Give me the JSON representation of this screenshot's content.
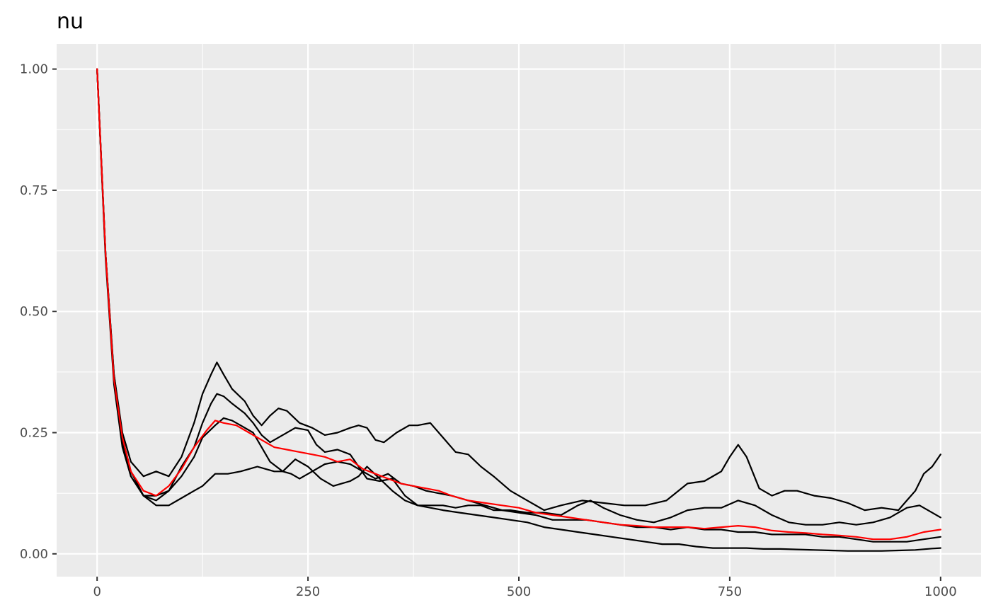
{
  "title": "nu",
  "chart_data": {
    "type": "line",
    "title": "nu",
    "xlabel": "",
    "ylabel": "",
    "xlim": [
      -48,
      1048
    ],
    "ylim": [
      -0.047,
      1.052
    ],
    "x_ticks": [
      0,
      250,
      500,
      750,
      1000
    ],
    "x_tick_labels": [
      "0",
      "250",
      "500",
      "750",
      "1000"
    ],
    "y_ticks": [
      0,
      0.25,
      0.5,
      0.75,
      1
    ],
    "y_tick_labels": [
      "0.00",
      "0.25",
      "0.50",
      "0.75",
      "1.00"
    ],
    "grid": true,
    "legend": "none",
    "colors": {
      "panel": "#ebebeb",
      "grid": "#ffffff",
      "chains": "#000000",
      "mean": "#ff0000"
    },
    "series": [
      {
        "color": "#000000",
        "x": [
          0,
          10,
          20,
          30,
          40,
          55,
          70,
          85,
          100,
          115,
          125,
          135,
          142,
          150,
          160,
          175,
          185,
          195,
          205,
          215,
          225,
          240,
          255,
          270,
          285,
          300,
          310,
          320,
          330,
          340,
          355,
          370,
          380,
          395,
          410,
          425,
          440,
          455,
          470,
          490,
          510,
          530,
          550,
          575,
          600,
          625,
          650,
          675,
          700,
          720,
          740,
          750,
          760,
          770,
          785,
          800,
          815,
          830,
          850,
          870,
          890,
          910,
          930,
          950,
          960,
          970,
          980,
          990,
          1000
        ],
        "y": [
          1.0,
          0.62,
          0.37,
          0.25,
          0.19,
          0.16,
          0.17,
          0.16,
          0.2,
          0.27,
          0.33,
          0.37,
          0.395,
          0.37,
          0.34,
          0.315,
          0.285,
          0.265,
          0.285,
          0.3,
          0.295,
          0.27,
          0.26,
          0.245,
          0.25,
          0.26,
          0.265,
          0.26,
          0.235,
          0.23,
          0.25,
          0.265,
          0.265,
          0.27,
          0.24,
          0.21,
          0.205,
          0.18,
          0.16,
          0.13,
          0.11,
          0.09,
          0.1,
          0.11,
          0.105,
          0.1,
          0.1,
          0.11,
          0.145,
          0.15,
          0.17,
          0.2,
          0.225,
          0.2,
          0.135,
          0.12,
          0.13,
          0.13,
          0.12,
          0.115,
          0.105,
          0.09,
          0.095,
          0.09,
          0.11,
          0.13,
          0.165,
          0.18,
          0.205
        ]
      },
      {
        "color": "#000000",
        "x": [
          0,
          10,
          20,
          30,
          40,
          55,
          70,
          85,
          100,
          115,
          125,
          135,
          142,
          150,
          160,
          175,
          185,
          195,
          205,
          220,
          235,
          250,
          260,
          270,
          285,
          300,
          310,
          320,
          335,
          350,
          365,
          380,
          395,
          410,
          425,
          440,
          455,
          470,
          490,
          510,
          530,
          550,
          570,
          585,
          600,
          620,
          640,
          660,
          680,
          700,
          720,
          740,
          760,
          780,
          800,
          820,
          840,
          860,
          880,
          900,
          920,
          940,
          960,
          975,
          990,
          1000
        ],
        "y": [
          1.0,
          0.62,
          0.37,
          0.24,
          0.17,
          0.12,
          0.11,
          0.13,
          0.18,
          0.22,
          0.27,
          0.31,
          0.33,
          0.325,
          0.31,
          0.29,
          0.27,
          0.245,
          0.23,
          0.245,
          0.26,
          0.255,
          0.225,
          0.21,
          0.215,
          0.205,
          0.18,
          0.155,
          0.15,
          0.155,
          0.12,
          0.1,
          0.1,
          0.1,
          0.095,
          0.1,
          0.1,
          0.09,
          0.09,
          0.085,
          0.085,
          0.08,
          0.1,
          0.11,
          0.095,
          0.08,
          0.07,
          0.065,
          0.075,
          0.09,
          0.095,
          0.095,
          0.11,
          0.1,
          0.08,
          0.065,
          0.06,
          0.06,
          0.065,
          0.06,
          0.065,
          0.075,
          0.095,
          0.1,
          0.085,
          0.075
        ]
      },
      {
        "color": "#000000",
        "x": [
          0,
          10,
          20,
          30,
          40,
          55,
          70,
          85,
          100,
          115,
          125,
          140,
          155,
          170,
          180,
          190,
          200,
          210,
          220,
          230,
          240,
          255,
          270,
          285,
          300,
          315,
          330,
          345,
          360,
          375,
          390,
          405,
          420,
          440,
          460,
          480,
          500,
          520,
          540,
          560,
          580,
          600,
          620,
          640,
          660,
          680,
          700,
          720,
          740,
          760,
          780,
          800,
          820,
          840,
          860,
          880,
          900,
          920,
          940,
          960,
          980,
          1000
        ],
        "y": [
          1.0,
          0.61,
          0.35,
          0.22,
          0.16,
          0.12,
          0.1,
          0.1,
          0.115,
          0.13,
          0.14,
          0.165,
          0.165,
          0.17,
          0.175,
          0.18,
          0.175,
          0.17,
          0.17,
          0.165,
          0.155,
          0.17,
          0.185,
          0.19,
          0.185,
          0.17,
          0.155,
          0.165,
          0.145,
          0.14,
          0.13,
          0.125,
          0.12,
          0.11,
          0.1,
          0.09,
          0.085,
          0.08,
          0.07,
          0.07,
          0.07,
          0.065,
          0.06,
          0.055,
          0.055,
          0.05,
          0.055,
          0.05,
          0.05,
          0.045,
          0.045,
          0.04,
          0.04,
          0.04,
          0.035,
          0.035,
          0.03,
          0.025,
          0.025,
          0.025,
          0.03,
          0.035
        ]
      },
      {
        "color": "#000000",
        "x": [
          0,
          10,
          20,
          30,
          40,
          55,
          70,
          85,
          100,
          115,
          125,
          140,
          150,
          160,
          170,
          185,
          195,
          205,
          220,
          235,
          250,
          265,
          280,
          290,
          300,
          310,
          320,
          335,
          350,
          365,
          380,
          395,
          410,
          430,
          450,
          470,
          490,
          510,
          530,
          550,
          570,
          590,
          610,
          630,
          650,
          670,
          690,
          710,
          730,
          750,
          770,
          790,
          810,
          830,
          850,
          870,
          890,
          910,
          930,
          950,
          970,
          990,
          1000
        ],
        "y": [
          1.0,
          0.62,
          0.36,
          0.23,
          0.16,
          0.12,
          0.12,
          0.13,
          0.16,
          0.2,
          0.24,
          0.265,
          0.28,
          0.275,
          0.265,
          0.25,
          0.22,
          0.19,
          0.17,
          0.195,
          0.18,
          0.155,
          0.14,
          0.145,
          0.15,
          0.16,
          0.18,
          0.155,
          0.13,
          0.11,
          0.1,
          0.095,
          0.09,
          0.085,
          0.08,
          0.075,
          0.07,
          0.065,
          0.055,
          0.05,
          0.045,
          0.04,
          0.035,
          0.03,
          0.025,
          0.02,
          0.02,
          0.015,
          0.012,
          0.012,
          0.012,
          0.01,
          0.01,
          0.009,
          0.008,
          0.007,
          0.006,
          0.006,
          0.006,
          0.007,
          0.008,
          0.011,
          0.012
        ]
      },
      {
        "color": "#ff0000",
        "x": [
          0,
          10,
          20,
          30,
          40,
          55,
          70,
          85,
          100,
          115,
          130,
          140,
          150,
          165,
          180,
          195,
          210,
          225,
          240,
          255,
          270,
          285,
          300,
          315,
          330,
          345,
          360,
          375,
          390,
          405,
          420,
          440,
          460,
          480,
          500,
          520,
          540,
          560,
          580,
          600,
          620,
          640,
          660,
          680,
          700,
          720,
          740,
          760,
          780,
          800,
          820,
          840,
          860,
          880,
          900,
          920,
          940,
          960,
          980,
          1000
        ],
        "y": [
          1.0,
          0.62,
          0.36,
          0.24,
          0.17,
          0.13,
          0.12,
          0.14,
          0.175,
          0.22,
          0.255,
          0.275,
          0.27,
          0.265,
          0.25,
          0.235,
          0.22,
          0.215,
          0.21,
          0.205,
          0.2,
          0.19,
          0.195,
          0.175,
          0.165,
          0.155,
          0.145,
          0.14,
          0.135,
          0.13,
          0.12,
          0.11,
          0.105,
          0.1,
          0.095,
          0.085,
          0.08,
          0.075,
          0.07,
          0.065,
          0.06,
          0.058,
          0.055,
          0.055,
          0.055,
          0.052,
          0.055,
          0.058,
          0.055,
          0.048,
          0.045,
          0.043,
          0.04,
          0.038,
          0.035,
          0.03,
          0.03,
          0.035,
          0.045,
          0.05
        ]
      }
    ]
  }
}
